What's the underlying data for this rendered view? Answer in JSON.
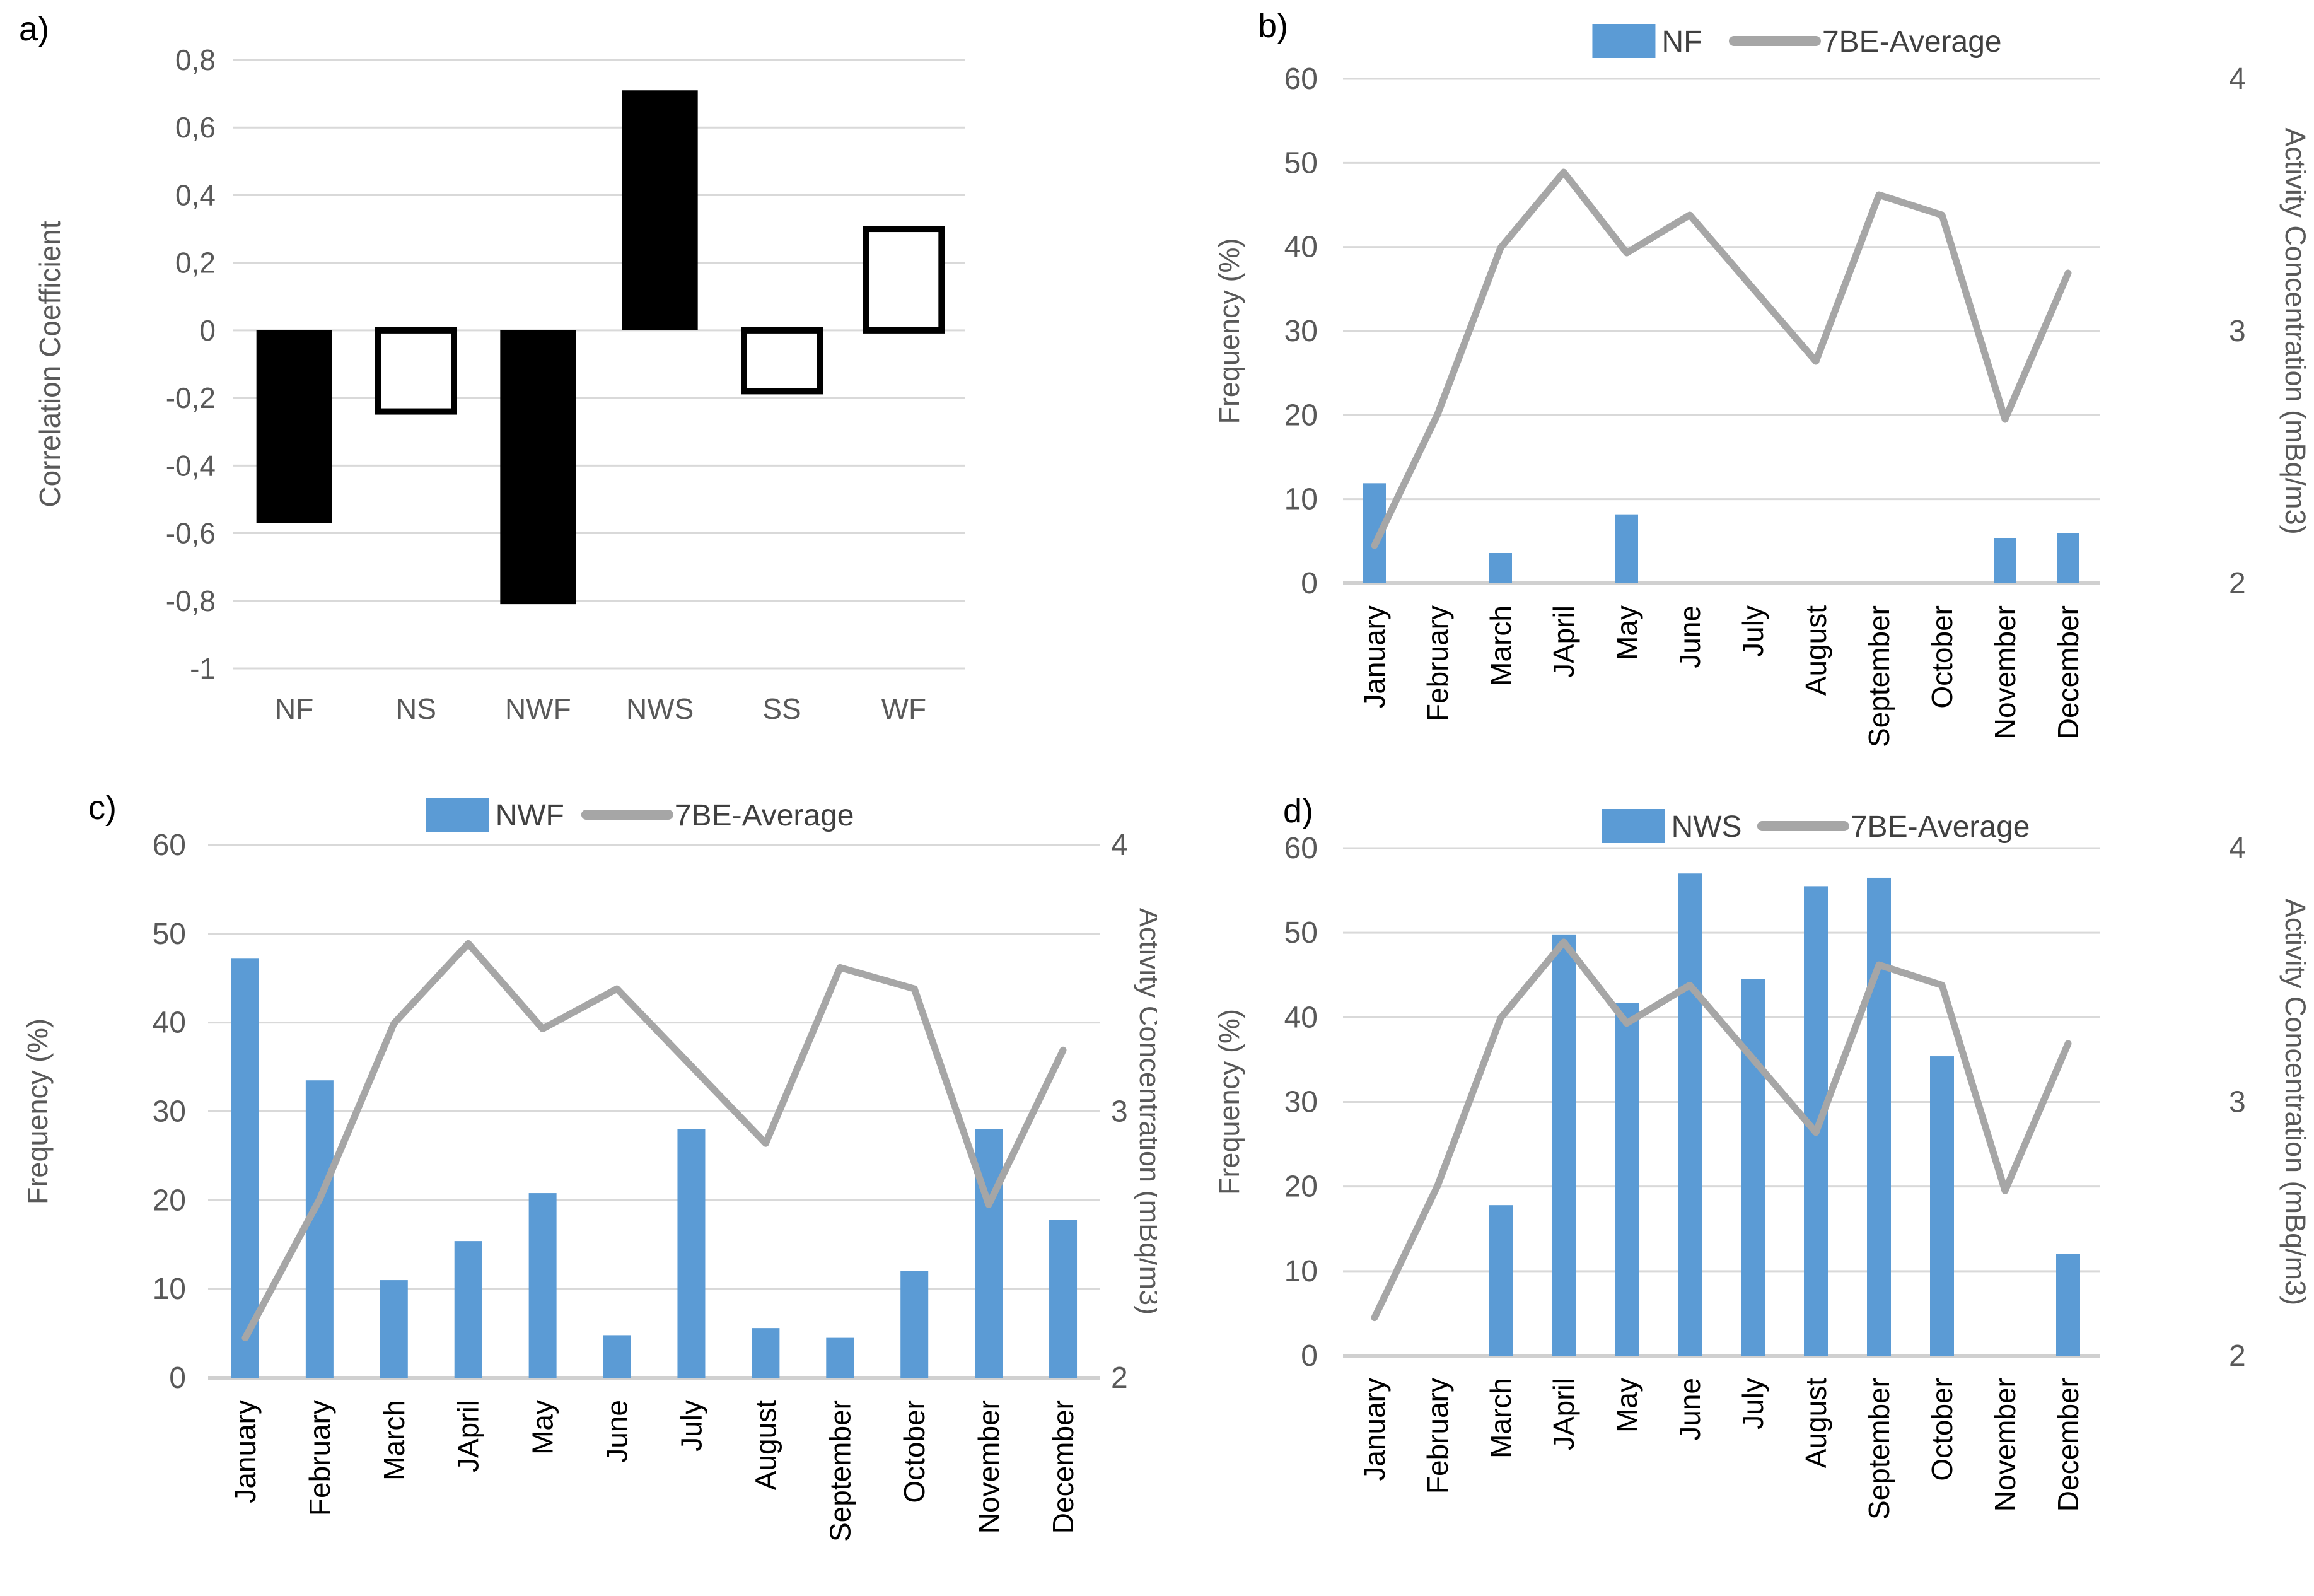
{
  "colors": {
    "bar_blue": "#5B9BD5",
    "line_gray": "#A6A6A6",
    "grid_gray": "#D9D9D9",
    "axis_line_gray": "#D0D0D0",
    "tick_text": "#595959",
    "month_text": "#000000",
    "legend_text": "#404040",
    "bar_black": "#000000",
    "bar_white": "#FFFFFF"
  },
  "panels": [
    {
      "id": "a",
      "label": "a)"
    },
    {
      "id": "b",
      "label": "b)"
    },
    {
      "id": "c",
      "label": "c)"
    },
    {
      "id": "d",
      "label": "d)"
    }
  ],
  "months": [
    "January",
    "February",
    "March",
    "JApril",
    "May",
    "June",
    "July",
    "August",
    "September",
    "October",
    "November",
    "December"
  ],
  "chart_data": [
    {
      "panel": "a",
      "type": "bar",
      "ylabel": "Correlation Coefficient",
      "categories": [
        "NF",
        "NS",
        "NWF",
        "NWS",
        "SS",
        "WF"
      ],
      "values": [
        -0.57,
        -0.24,
        -0.81,
        0.71,
        -0.18,
        0.3
      ],
      "bar_styles": [
        "filled",
        "outlined",
        "filled",
        "filled",
        "outlined",
        "outlined"
      ],
      "ylim": [
        -1,
        0.8
      ],
      "yticks": [
        0.8,
        0.6,
        0.4,
        0.2,
        0,
        -0.2,
        -0.4,
        -0.6,
        -0.8,
        -1
      ],
      "ytick_labels": [
        "0,8",
        "0,6",
        "0,4",
        "0,2",
        "0",
        "-0,2",
        "-0,4",
        "-0,6",
        "-0,8",
        "-1"
      ],
      "grid": true,
      "legend_position": "none"
    },
    {
      "panel": "b",
      "type": "bar+line",
      "categories_key": "months",
      "bar_series": {
        "name": "NF",
        "values": [
          11.9,
          0,
          3.6,
          0,
          8.2,
          0,
          0,
          0,
          0,
          0,
          5.4,
          6.0
        ]
      },
      "line_series": {
        "name": "7BE-Average",
        "values_mBq_m3": [
          2.15,
          2.67,
          3.33,
          3.63,
          3.31,
          3.46,
          3.17,
          2.88,
          3.54,
          3.46,
          2.65,
          3.23
        ]
      },
      "left_axis": {
        "label": "Frequency (%)",
        "min": 0,
        "max": 60,
        "ticks": [
          0,
          10,
          20,
          30,
          40,
          50,
          60
        ]
      },
      "right_axis": {
        "label": "Activity Concentration (mBq/m3)",
        "min": 2,
        "max": 4,
        "ticks": [
          2,
          3,
          4
        ]
      },
      "grid": true,
      "legend_position": "top"
    },
    {
      "panel": "c",
      "type": "bar+line",
      "categories_key": "months",
      "bar_series": {
        "name": "NWF",
        "values": [
          47.2,
          33.5,
          11.0,
          15.4,
          20.8,
          4.8,
          28.0,
          5.6,
          4.5,
          12.0,
          28.0,
          17.8
        ]
      },
      "line_series": {
        "name": "7BE-Average",
        "values_mBq_m3": [
          2.15,
          2.67,
          3.33,
          3.63,
          3.31,
          3.46,
          3.17,
          2.88,
          3.54,
          3.46,
          2.65,
          3.23
        ]
      },
      "left_axis": {
        "label": "Frequency (%)",
        "min": 0,
        "max": 60,
        "ticks": [
          0,
          10,
          20,
          30,
          40,
          50,
          60
        ]
      },
      "right_axis": {
        "label": "Activity Concentration (mBq/m3)",
        "min": 2,
        "max": 4,
        "ticks": [
          2,
          3,
          4
        ]
      },
      "grid": true,
      "legend_position": "top"
    },
    {
      "panel": "d",
      "type": "bar+line",
      "categories_key": "months",
      "bar_series": {
        "name": "NWS",
        "values": [
          0,
          0,
          17.8,
          49.8,
          41.7,
          57.0,
          44.5,
          55.5,
          56.5,
          35.4,
          0,
          12.0
        ]
      },
      "line_series": {
        "name": "7BE-Average",
        "values_mBq_m3": [
          2.15,
          2.67,
          3.33,
          3.63,
          3.31,
          3.46,
          3.17,
          2.88,
          3.54,
          3.46,
          2.65,
          3.23
        ]
      },
      "left_axis": {
        "label": "Frequency (%)",
        "min": 0,
        "max": 60,
        "ticks": [
          0,
          10,
          20,
          30,
          40,
          50,
          60
        ]
      },
      "right_axis": {
        "label": "Activity Concentration (mBq/m3)",
        "min": 2,
        "max": 4,
        "ticks": [
          2,
          3,
          4
        ]
      },
      "grid": true,
      "legend_position": "top"
    }
  ]
}
